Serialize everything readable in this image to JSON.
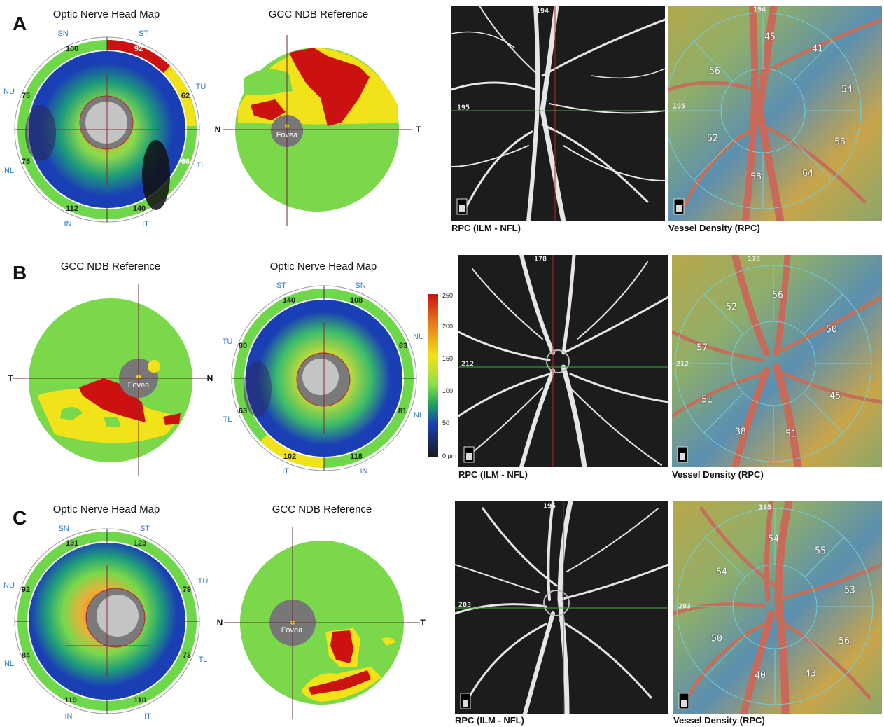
{
  "panels": [
    {
      "label": "A",
      "onh_title": "Optic Nerve Head Map",
      "gcc_title": "GCC NDB Reference",
      "sectors": {
        "SN": "SN",
        "ST": "ST",
        "TU": "TU",
        "TL": "TL",
        "IT": "IT",
        "IN": "IN",
        "NL": "NL",
        "NU": "NU"
      },
      "onh_values": {
        "sn": "100",
        "st": "92",
        "tu": "62",
        "tl": "66",
        "it": "140",
        "in": "112",
        "nl": "75",
        "nu": "75"
      },
      "gcc_left_axis": "N",
      "gcc_right_axis": "T",
      "fovea": "Fovea",
      "rpc_depth": "194",
      "rpc_side_depth": "195",
      "rpc_caption": "RPC (ILM - NFL)",
      "vd_caption": "Vessel Density (RPC)",
      "vd_values": {
        "top": "45",
        "tr": "41",
        "ul": "56",
        "r": "54",
        "l": "52",
        "rl": "56",
        "bl": "58",
        "br": "64"
      }
    },
    {
      "label": "B",
      "onh_title": "Optic Nerve Head Map",
      "gcc_title": "GCC NDB Reference",
      "sectors": {
        "SN": "SN",
        "ST": "ST",
        "TU": "TU",
        "TL": "TL",
        "IT": "IT",
        "IN": "IN",
        "NL": "NL",
        "NU": "NU"
      },
      "onh_values": {
        "st": "140",
        "sn": "108",
        "nu": "83",
        "nl": "81",
        "in": "118",
        "it": "102",
        "tl": "63",
        "tu": "80"
      },
      "gcc_left_axis": "T",
      "gcc_right_axis": "N",
      "fovea": "Fovea",
      "rpc_depth": "178",
      "rpc_side_depth": "212",
      "rpc_caption": "RPC (ILM - NFL)",
      "vd_caption": "Vessel Density (RPC)",
      "vd_values": {
        "top": "56",
        "ul": "52",
        "r": "50",
        "l": "57",
        "ll": "51",
        "br": "45",
        "b1": "38",
        "b2": "51"
      }
    },
    {
      "label": "C",
      "onh_title": "Optic Nerve Head Map",
      "gcc_title": "GCC NDB Reference",
      "sectors": {
        "SN": "SN",
        "ST": "ST",
        "TU": "TU",
        "TL": "TL",
        "IT": "IT",
        "IN": "IN",
        "NL": "NL",
        "NU": "NU"
      },
      "onh_values": {
        "sn": "131",
        "st": "123",
        "tu": "79",
        "tl": "73",
        "it": "110",
        "in": "119",
        "nl": "84",
        "nu": "92"
      },
      "gcc_left_axis": "N",
      "gcc_right_axis": "T",
      "fovea": "Fovea",
      "rpc_depth": "195",
      "rpc_side_depth": "203",
      "rpc_caption": "RPC (ILM - NFL)",
      "vd_caption": "Vessel Density (RPC)",
      "vd_values": {
        "top": "54",
        "tr": "55",
        "ul": "54",
        "r": "53",
        "l": "50",
        "br": "56",
        "b1": "40",
        "b2": "43"
      }
    }
  ],
  "colorbar": {
    "ticks": [
      "250",
      "200",
      "150",
      "100",
      "50",
      "0 µm"
    ],
    "colors": [
      "#cc1111",
      "#e87a1a",
      "#f2e21a",
      "#8ee04a",
      "#1f9f5a",
      "#1a3fb5",
      "#1a1a1a"
    ]
  }
}
